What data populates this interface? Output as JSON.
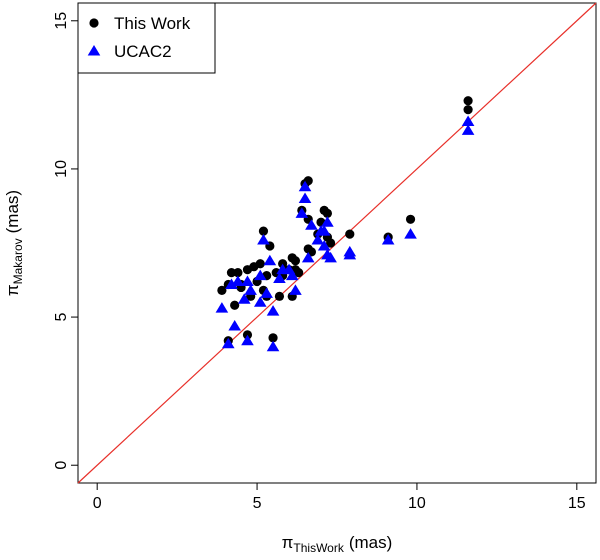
{
  "chart_data": {
    "type": "scatter",
    "xlabel": {
      "symbol": "π",
      "subscript": "ThisWork",
      "unit": "(mas)"
    },
    "ylabel": {
      "symbol": "π",
      "subscript": "Makarov",
      "unit": "(mas)"
    },
    "xlim": [
      -0.6,
      15.6
    ],
    "ylim": [
      -0.6,
      15.6
    ],
    "xticks": [
      0,
      5,
      10,
      15
    ],
    "yticks": [
      0,
      5,
      10,
      15
    ],
    "grid": false,
    "legend_position": "top-left",
    "reference_line": {
      "type": "y=x",
      "color": "#e8302a"
    },
    "series": [
      {
        "name": "This Work",
        "marker": "circle",
        "color": "#000000",
        "points": [
          [
            3.9,
            5.9
          ],
          [
            4.1,
            6.1
          ],
          [
            4.1,
            4.2
          ],
          [
            4.2,
            6.5
          ],
          [
            4.3,
            5.4
          ],
          [
            4.4,
            6.5
          ],
          [
            4.5,
            6.0
          ],
          [
            4.5,
            6.1
          ],
          [
            4.7,
            4.4
          ],
          [
            4.7,
            6.6
          ],
          [
            4.8,
            5.7
          ],
          [
            4.9,
            6.7
          ],
          [
            5.0,
            6.2
          ],
          [
            5.1,
            6.8
          ],
          [
            5.2,
            7.9
          ],
          [
            5.2,
            5.9
          ],
          [
            5.3,
            6.4
          ],
          [
            5.3,
            5.7
          ],
          [
            5.4,
            7.4
          ],
          [
            5.5,
            4.3
          ],
          [
            5.6,
            6.5
          ],
          [
            5.7,
            5.7
          ],
          [
            5.8,
            6.8
          ],
          [
            5.8,
            6.4
          ],
          [
            6.0,
            6.6
          ],
          [
            6.1,
            7.0
          ],
          [
            6.1,
            5.7
          ],
          [
            6.2,
            6.6
          ],
          [
            6.2,
            6.9
          ],
          [
            6.3,
            6.5
          ],
          [
            6.4,
            8.6
          ],
          [
            6.5,
            9.5
          ],
          [
            6.6,
            9.6
          ],
          [
            6.6,
            8.3
          ],
          [
            6.6,
            7.3
          ],
          [
            6.7,
            7.2
          ],
          [
            6.9,
            7.8
          ],
          [
            7.0,
            8.2
          ],
          [
            7.1,
            8.6
          ],
          [
            7.2,
            8.5
          ],
          [
            7.2,
            7.7
          ],
          [
            7.3,
            7.5
          ],
          [
            7.9,
            7.8
          ],
          [
            9.1,
            7.7
          ],
          [
            9.8,
            8.3
          ],
          [
            11.6,
            12.3
          ],
          [
            11.6,
            12.0
          ]
        ]
      },
      {
        "name": "UCAC2",
        "marker": "triangle",
        "color": "#0000ff",
        "points": [
          [
            3.9,
            5.3
          ],
          [
            4.1,
            4.1
          ],
          [
            4.2,
            6.1
          ],
          [
            4.3,
            4.7
          ],
          [
            4.4,
            6.2
          ],
          [
            4.6,
            5.6
          ],
          [
            4.7,
            4.2
          ],
          [
            4.7,
            6.2
          ],
          [
            4.8,
            5.9
          ],
          [
            5.1,
            5.5
          ],
          [
            5.1,
            6.4
          ],
          [
            5.2,
            7.6
          ],
          [
            5.3,
            5.8
          ],
          [
            5.4,
            6.9
          ],
          [
            5.5,
            4.0
          ],
          [
            5.5,
            5.2
          ],
          [
            5.7,
            6.3
          ],
          [
            5.8,
            6.6
          ],
          [
            6.0,
            6.6
          ],
          [
            6.1,
            6.4
          ],
          [
            6.2,
            5.9
          ],
          [
            6.4,
            8.5
          ],
          [
            6.5,
            9.0
          ],
          [
            6.5,
            9.4
          ],
          [
            6.6,
            7.0
          ],
          [
            6.7,
            8.1
          ],
          [
            6.9,
            7.6
          ],
          [
            7.0,
            7.9
          ],
          [
            7.1,
            7.4
          ],
          [
            7.1,
            7.9
          ],
          [
            7.2,
            8.2
          ],
          [
            7.2,
            7.1
          ],
          [
            7.3,
            7.0
          ],
          [
            7.9,
            7.1
          ],
          [
            7.9,
            7.2
          ],
          [
            9.1,
            7.6
          ],
          [
            9.8,
            7.8
          ],
          [
            11.6,
            11.6
          ],
          [
            11.6,
            11.3
          ]
        ]
      }
    ]
  }
}
